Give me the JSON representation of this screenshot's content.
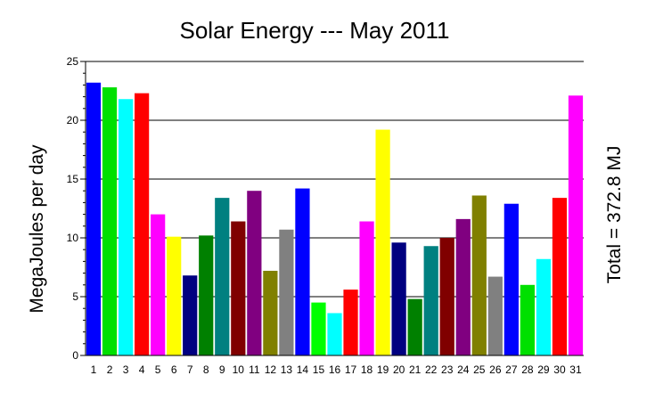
{
  "chart_data": {
    "type": "bar",
    "title": "Solar Energy --- May 2011",
    "xlabel": "",
    "ylabel": "MegaJoules per day",
    "right_label": "Total = 372.8 MJ",
    "ylim": [
      0,
      25
    ],
    "yticks": [
      0,
      5,
      10,
      15,
      20,
      25
    ],
    "grid": "horizontal",
    "categories": [
      "1",
      "2",
      "3",
      "4",
      "5",
      "6",
      "7",
      "8",
      "9",
      "10",
      "11",
      "12",
      "13",
      "14",
      "15",
      "16",
      "17",
      "18",
      "19",
      "20",
      "21",
      "22",
      "23",
      "24",
      "25",
      "26",
      "27",
      "28",
      "29",
      "30",
      "31"
    ],
    "values": [
      23.2,
      22.8,
      21.8,
      22.3,
      12.0,
      10.1,
      6.8,
      10.2,
      13.4,
      11.4,
      14.0,
      7.2,
      10.7,
      14.2,
      4.5,
      3.6,
      5.6,
      11.4,
      19.2,
      9.6,
      4.8,
      9.3,
      10.0,
      11.6,
      13.6,
      6.7,
      12.9,
      6.0,
      8.2,
      13.4,
      22.1
    ],
    "colors": [
      "#0000ff",
      "#00e000",
      "#00ffff",
      "#ff0000",
      "#ff00ff",
      "#ffff00",
      "#000080",
      "#008000",
      "#008080",
      "#800000",
      "#800080",
      "#808000",
      "#808080",
      "#0000ff",
      "#00ff00",
      "#00ffff",
      "#ff0000",
      "#ff00ff",
      "#ffff00",
      "#000080",
      "#008000",
      "#008080",
      "#800000",
      "#800080",
      "#808000",
      "#808080",
      "#0000ff",
      "#00e000",
      "#00ffff",
      "#ff0000",
      "#ff00ff"
    ]
  }
}
